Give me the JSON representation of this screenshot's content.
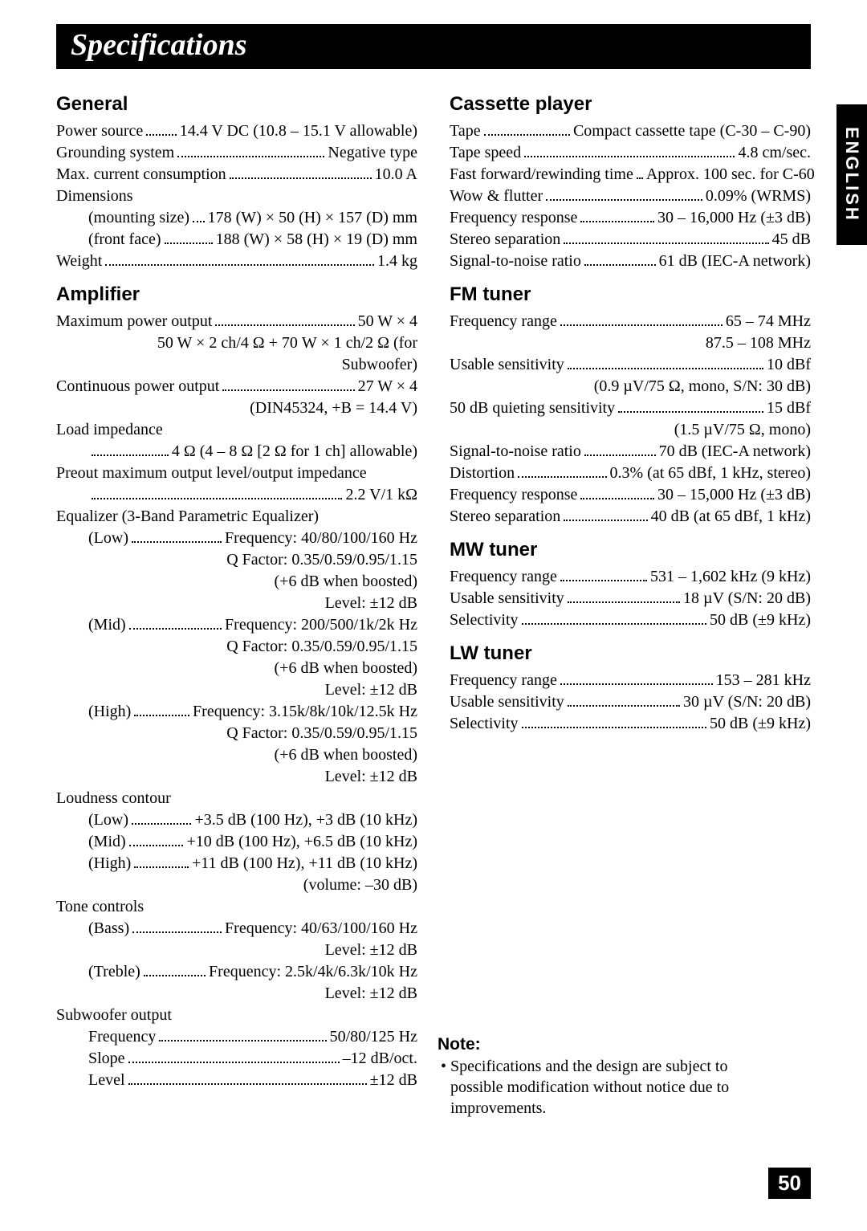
{
  "page_title": "Specifications",
  "language_tab": "ENGLISH",
  "page_number": "50",
  "note": {
    "heading": "Note:",
    "bullet": "•",
    "text": "Specifications and the design are subject to possible modification without notice due to improvements."
  },
  "left": {
    "general": {
      "heading": "General",
      "items": [
        {
          "label": "Power source",
          "value": "14.4 V DC (10.8 – 15.1 V allowable)"
        },
        {
          "label": "Grounding system",
          "value": "Negative type"
        },
        {
          "label": "Max. current consumption",
          "value": "10.0 A"
        },
        {
          "plain": "Dimensions"
        },
        {
          "indent": true,
          "label": "(mounting size)",
          "value": "178 (W) × 50 (H) × 157 (D) mm"
        },
        {
          "indent": true,
          "label": "(front face)",
          "value": "188 (W) × 58 (H) × 19 (D) mm"
        },
        {
          "label": "Weight",
          "value": "1.4 kg"
        }
      ]
    },
    "amplifier": {
      "heading": "Amplifier",
      "items": [
        {
          "label": "Maximum power output",
          "value": "50 W × 4"
        },
        {
          "right": "50 W × 2 ch/4 Ω + 70 W × 1 ch/2 Ω (for Subwoofer)",
          "indent": true
        },
        {
          "label": "Continuous power output",
          "value": "27 W × 4"
        },
        {
          "right": "(DIN45324, +B = 14.4 V)"
        },
        {
          "plain": "Load impedance"
        },
        {
          "indent": true,
          "label": "",
          "value": "4 Ω (4 – 8 Ω [2 Ω for 1 ch] allowable)"
        },
        {
          "plain": "Preout maximum output level/output impedance"
        },
        {
          "indent": true,
          "label": "",
          "value": "2.2 V/1 kΩ"
        },
        {
          "plain": "Equalizer (3-Band Parametric Equalizer)"
        },
        {
          "indent": true,
          "label": "(Low)",
          "value": "Frequency: 40/80/100/160 Hz"
        },
        {
          "right": "Q Factor: 0.35/0.59/0.95/1.15"
        },
        {
          "right": "(+6 dB when boosted)"
        },
        {
          "right": "Level: ±12 dB"
        },
        {
          "indent": true,
          "label": "(Mid)",
          "value": "Frequency: 200/500/1k/2k Hz"
        },
        {
          "right": "Q Factor: 0.35/0.59/0.95/1.15"
        },
        {
          "right": "(+6 dB when boosted)"
        },
        {
          "right": "Level: ±12 dB"
        },
        {
          "indent": true,
          "label": "(High)",
          "value": "Frequency: 3.15k/8k/10k/12.5k Hz"
        },
        {
          "right": "Q Factor: 0.35/0.59/0.95/1.15"
        },
        {
          "right": "(+6 dB when boosted)"
        },
        {
          "right": "Level: ±12 dB"
        },
        {
          "plain": "Loudness contour"
        },
        {
          "indent": true,
          "label": "(Low)",
          "value": "+3.5 dB (100 Hz), +3 dB (10 kHz)"
        },
        {
          "indent": true,
          "label": "(Mid)",
          "value": "+10 dB (100 Hz), +6.5 dB (10 kHz)"
        },
        {
          "indent": true,
          "label": "(High)",
          "value": "+11 dB (100 Hz), +11 dB (10 kHz)"
        },
        {
          "right": "(volume: –30 dB)"
        },
        {
          "plain": "Tone controls"
        },
        {
          "indent": true,
          "label": "(Bass)",
          "value": "Frequency: 40/63/100/160 Hz"
        },
        {
          "right": "Level: ±12 dB"
        },
        {
          "indent": true,
          "label": "(Treble)",
          "value": "Frequency: 2.5k/4k/6.3k/10k Hz"
        },
        {
          "right": "Level: ±12 dB"
        },
        {
          "plain": "Subwoofer output"
        },
        {
          "indent": true,
          "label": "Frequency",
          "value": "50/80/125 Hz"
        },
        {
          "indent": true,
          "label": "Slope",
          "value": "–12 dB/oct."
        },
        {
          "indent": true,
          "label": "Level",
          "value": "±12 dB"
        }
      ]
    }
  },
  "right": {
    "cassette": {
      "heading": "Cassette player",
      "items": [
        {
          "label": "Tape",
          "value": "Compact cassette tape (C-30 – C-90)"
        },
        {
          "label": "Tape speed",
          "value": "4.8 cm/sec."
        },
        {
          "label": "Fast forward/rewinding time",
          "value": "Approx. 100 sec. for C-60"
        },
        {
          "label": "Wow & flutter",
          "value": "0.09% (WRMS)"
        },
        {
          "label": "Frequency response",
          "value": "30 – 16,000 Hz (±3 dB)"
        },
        {
          "label": "Stereo separation",
          "value": "45 dB"
        },
        {
          "label": "Signal-to-noise ratio",
          "value": "61 dB (IEC-A network)"
        }
      ]
    },
    "fm": {
      "heading": "FM tuner",
      "items": [
        {
          "label": "Frequency range",
          "value": "65 – 74 MHz"
        },
        {
          "right": "87.5 – 108 MHz"
        },
        {
          "label": "Usable sensitivity",
          "value": "10 dBf"
        },
        {
          "right": "(0.9 µV/75 Ω, mono, S/N: 30 dB)"
        },
        {
          "label": "50 dB quieting sensitivity",
          "value": "15 dBf"
        },
        {
          "right": "(1.5 µV/75 Ω, mono)"
        },
        {
          "label": "Signal-to-noise ratio",
          "value": "70 dB (IEC-A network)"
        },
        {
          "label": "Distortion",
          "value": "0.3% (at 65 dBf, 1 kHz, stereo)"
        },
        {
          "label": "Frequency response",
          "value": "30 – 15,000 Hz (±3 dB)"
        },
        {
          "label": "Stereo separation",
          "value": "40 dB (at 65 dBf, 1 kHz)"
        }
      ]
    },
    "mw": {
      "heading": "MW tuner",
      "items": [
        {
          "label": "Frequency range",
          "value": "531 – 1,602 kHz (9 kHz)"
        },
        {
          "label": "Usable sensitivity",
          "value": "18 µV (S/N: 20 dB)"
        },
        {
          "label": "Selectivity",
          "value": "50 dB (±9 kHz)"
        }
      ]
    },
    "lw": {
      "heading": "LW tuner",
      "items": [
        {
          "label": "Frequency range",
          "value": "153 – 281 kHz"
        },
        {
          "label": "Usable sensitivity",
          "value": "30 µV (S/N: 20 dB)"
        },
        {
          "label": "Selectivity",
          "value": "50 dB (±9 kHz)"
        }
      ]
    }
  }
}
